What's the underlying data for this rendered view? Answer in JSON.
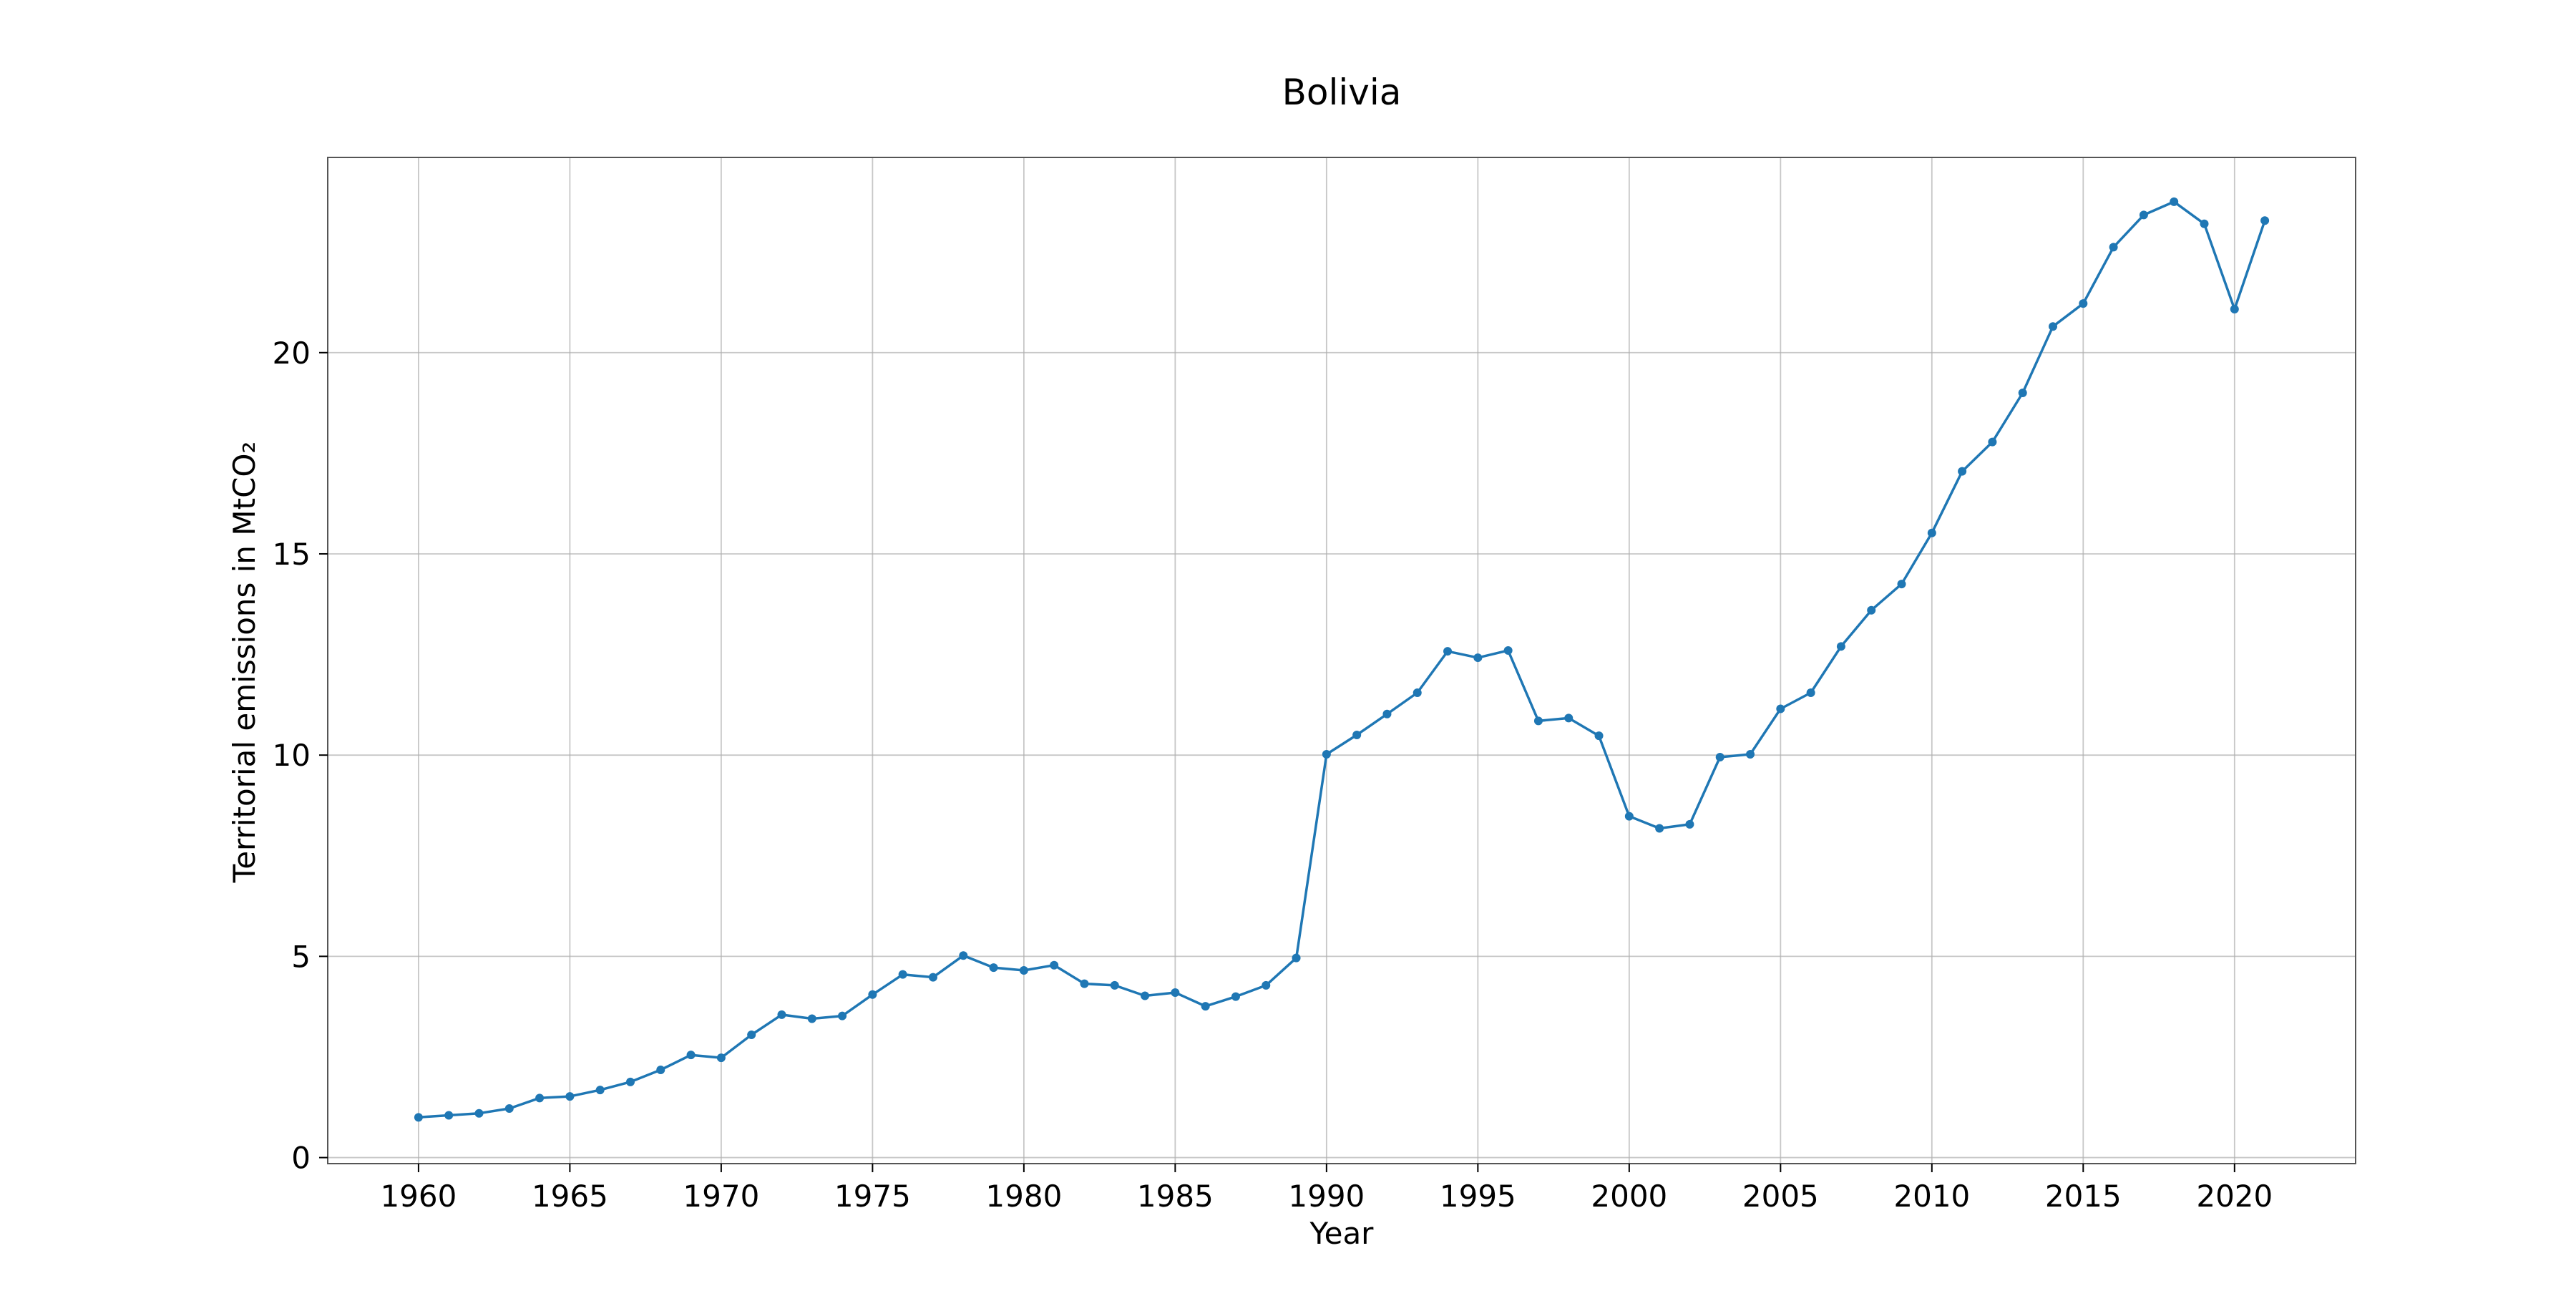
{
  "chart_data": {
    "type": "line",
    "title": "Bolivia",
    "xlabel": "Year",
    "ylabel": "Territorial emissions in MtCO₂",
    "xlim": [
      1957,
      2024
    ],
    "ylim": [
      -0.15,
      24.85
    ],
    "x_ticks": [
      1960,
      1965,
      1970,
      1975,
      1980,
      1985,
      1990,
      1995,
      2000,
      2005,
      2010,
      2015,
      2020
    ],
    "y_ticks": [
      0,
      5,
      10,
      15,
      20
    ],
    "grid": true,
    "series": [
      {
        "color": "#1f77b4",
        "marker": "circle",
        "x": [
          1960,
          1961,
          1962,
          1963,
          1964,
          1965,
          1966,
          1967,
          1968,
          1969,
          1970,
          1971,
          1972,
          1973,
          1974,
          1975,
          1976,
          1977,
          1978,
          1979,
          1980,
          1981,
          1982,
          1983,
          1984,
          1985,
          1986,
          1987,
          1988,
          1989,
          1990,
          1991,
          1992,
          1993,
          1994,
          1995,
          1996,
          1997,
          1998,
          1999,
          2000,
          2001,
          2002,
          2003,
          2004,
          2005,
          2006,
          2007,
          2008,
          2009,
          2010,
          2011,
          2012,
          2013,
          2014,
          2015,
          2016,
          2017,
          2018,
          2019,
          2020,
          2021
        ],
        "values": [
          1.0,
          1.05,
          1.1,
          1.22,
          1.48,
          1.52,
          1.68,
          1.88,
          2.18,
          2.55,
          2.48,
          3.05,
          3.55,
          3.45,
          3.52,
          4.05,
          4.55,
          4.48,
          5.02,
          4.72,
          4.65,
          4.78,
          4.32,
          4.28,
          4.02,
          4.1,
          3.76,
          4.0,
          4.28,
          4.96,
          10.02,
          10.5,
          11.02,
          11.55,
          12.58,
          12.42,
          12.6,
          10.85,
          10.92,
          10.48,
          8.48,
          8.18,
          8.28,
          9.95,
          10.02,
          11.15,
          11.55,
          12.7,
          13.6,
          14.25,
          15.52,
          17.05,
          17.78,
          19.0,
          20.65,
          21.22,
          22.62,
          23.42,
          23.75,
          23.2,
          21.08,
          23.28
        ]
      }
    ]
  }
}
